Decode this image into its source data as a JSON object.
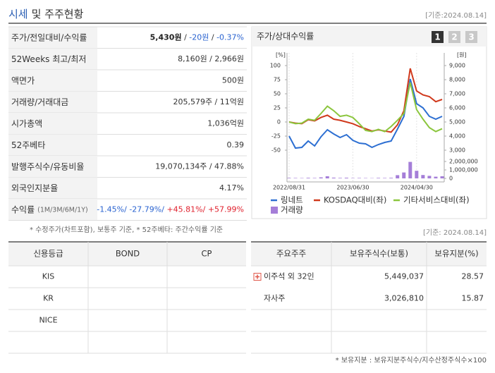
{
  "header": {
    "title_highlight": "시세",
    "title_rest": "및 주주현황",
    "date": "[기준:2024.08.14]"
  },
  "summary_table": {
    "rows": [
      {
        "label": "주가/전일대비/수익률",
        "value": [
          {
            "text": "5,430원",
            "tone": "strong"
          },
          {
            "text": " / "
          },
          {
            "text": "-20원",
            "tone": "down"
          },
          {
            "text": " / "
          },
          {
            "text": "-0.37%",
            "tone": "down"
          }
        ]
      },
      {
        "label": "52Weeks 최고/최저",
        "value": [
          {
            "text": "8,160원 / 2,966원"
          }
        ]
      },
      {
        "label": "액면가",
        "value": [
          {
            "text": "500원"
          }
        ]
      },
      {
        "label": "거래량/거래대금",
        "value": [
          {
            "text": "205,579주 / 11억원"
          }
        ]
      },
      {
        "label": "시가총액",
        "value": [
          {
            "text": "1,036억원"
          }
        ]
      },
      {
        "label": "52주베타",
        "value": [
          {
            "text": "0.39"
          }
        ]
      },
      {
        "label": "발행주식수/유동비율",
        "value": [
          {
            "text": "19,070,134주 / 47.88%"
          }
        ]
      },
      {
        "label": "외국인지분율",
        "value": [
          {
            "text": "4.17%"
          }
        ]
      },
      {
        "label": "수익률",
        "label_note": "(1M/3M/6M/1Y)",
        "value": [
          {
            "text": "-1.45%/",
            "tone": "down"
          },
          {
            "text": " -27.79%/",
            "tone": "down"
          },
          {
            "text": " +45.81%/",
            "tone": "up"
          },
          {
            "text": " +57.99%",
            "tone": "up"
          }
        ]
      }
    ]
  },
  "summary_note": "* 수정주가(차트포함), 보통주 기준, * 52주베타: 주간수익률 기준",
  "chart_panel": {
    "title": "주가/상대수익률",
    "tabs": [
      "1",
      "2",
      "3"
    ],
    "active_tab": 0
  },
  "chart_data": {
    "type": "line",
    "y_label": "[%]",
    "y2_label": "[원]",
    "categories": [
      "2022/08/31",
      null,
      null,
      null,
      null,
      null,
      null,
      null,
      null,
      null,
      "2023/06/30",
      null,
      null,
      null,
      null,
      null,
      null,
      null,
      null,
      null,
      "2024/04/30",
      null,
      null,
      null,
      null
    ],
    "ylim": [
      -50,
      100
    ],
    "yticks": [
      100,
      75,
      50,
      25,
      0,
      -25,
      -50
    ],
    "y2lim": [
      3000,
      9000
    ],
    "y2ticks": [
      {
        "value": 9000,
        "label": "9,000"
      },
      {
        "value": 8000,
        "label": "8,000"
      },
      {
        "value": 7000,
        "label": "7,000"
      },
      {
        "value": 6000,
        "label": "6,000"
      },
      {
        "value": 5000,
        "label": "5,000"
      },
      {
        "value": 4000,
        "label": "4,000"
      },
      {
        "value": 3000,
        "label": "3,000"
      }
    ],
    "y3lim": [
      0,
      2000000
    ],
    "y3ticks": [
      {
        "value": 2000000,
        "label": "2,000,000"
      },
      {
        "value": 1000000,
        "label": "1,000,000"
      },
      0
    ],
    "series": [
      {
        "name": "링네트",
        "color": "#2d6fd2",
        "axis": "y2",
        "values": [
          4000,
          3150,
          3200,
          3650,
          3300,
          3950,
          4450,
          4150,
          3900,
          4100,
          3700,
          3500,
          3450,
          3200,
          3400,
          3550,
          3650,
          4500,
          5400,
          8050,
          6300,
          6000,
          5400,
          5200,
          5400
        ]
      },
      {
        "name": "KOSDAQ대비(좌)",
        "color": "#d0391c",
        "axis": "y",
        "values": [
          0,
          -2,
          -3,
          4,
          2,
          8,
          12,
          5,
          3,
          0,
          -3,
          -8,
          -12,
          -16,
          -14,
          -16,
          -18,
          -5,
          20,
          95,
          55,
          48,
          45,
          36,
          40
        ]
      },
      {
        "name": "기타서비스대비(좌)",
        "color": "#8cc63e",
        "axis": "y",
        "values": [
          0,
          -3,
          -2,
          5,
          3,
          15,
          28,
          20,
          10,
          12,
          8,
          -3,
          -15,
          -17,
          -13,
          -17,
          -8,
          3,
          15,
          70,
          22,
          5,
          -10,
          -17,
          -12
        ]
      },
      {
        "name": "거래량",
        "color": "#a57ed8",
        "axis": "y3",
        "type": "bar",
        "values": [
          60000,
          50000,
          40000,
          70000,
          50000,
          120000,
          250000,
          90000,
          60000,
          80000,
          40000,
          50000,
          40000,
          30000,
          60000,
          50000,
          70000,
          380000,
          700000,
          1950000,
          900000,
          400000,
          300000,
          200000,
          250000
        ]
      }
    ]
  },
  "credit_table": {
    "headers": [
      "신용등급",
      "BOND",
      "CP"
    ],
    "rows": [
      [
        "KIS"
      ],
      [
        "KR"
      ],
      [
        "NICE"
      ]
    ]
  },
  "shareholder_table": {
    "date": "[기준: 2024.08.14]",
    "headers": [
      "주요주주",
      "보유주식수(보통)",
      "보유지분(%)"
    ],
    "rows": [
      [
        "이주석 외 32인",
        "5,449,037",
        "28.57"
      ],
      [
        "자사주",
        "3,026,810",
        "15.87"
      ]
    ],
    "note": "* 보유지분 : 보유지분주식수/지수산정주식수×100"
  }
}
